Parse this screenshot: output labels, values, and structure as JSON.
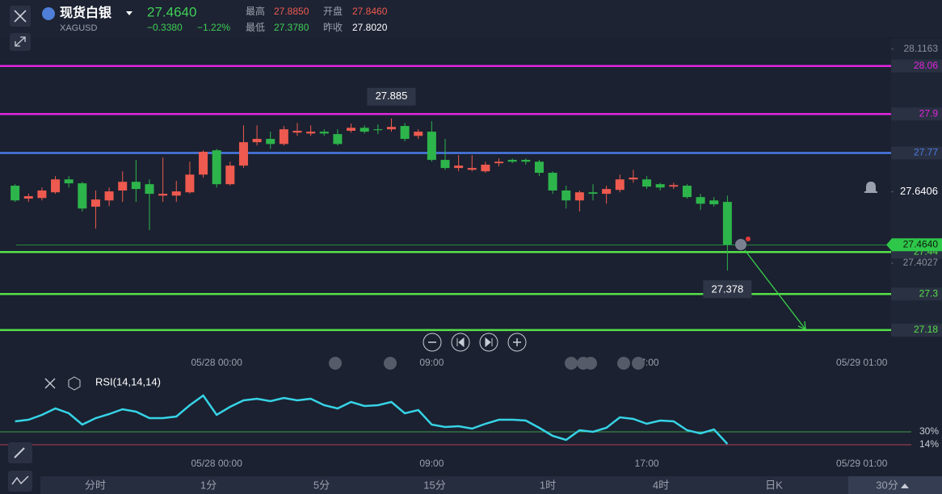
{
  "header": {
    "name": "现货白银",
    "symbol": "XAGUSD",
    "price": "27.4640",
    "change": "−0.3380",
    "change_pct": "−1.22%",
    "high_label": "最高",
    "high": "27.8850",
    "open_label": "开盘",
    "open": "27.8460",
    "low_label": "最低",
    "low": "27.3780",
    "prev_label": "昨收",
    "prev": "27.8020"
  },
  "chart_data": [
    {
      "type": "candlestick",
      "up_color": "#ee5a4f",
      "down_color": "#2db54b",
      "ylim": [
        27.15,
        28.14
      ],
      "yticks": [
        28.1163,
        27.6406,
        27.4027
      ],
      "xlim": [
        -1,
        65
      ],
      "xticks": [
        {
          "value": 15,
          "label": "05/28 00:00"
        },
        {
          "value": 31,
          "label": "09:00"
        },
        {
          "value": 47,
          "label": "17:00"
        },
        {
          "value": 63,
          "label": "05/29 01:00"
        }
      ],
      "last_price": {
        "value": 27.464,
        "label": "27.4640",
        "color": "#2fc74a"
      },
      "hlines": [
        {
          "value": 28.06,
          "color": "#e026e0"
        },
        {
          "value": 27.9,
          "color": "#e026e0"
        },
        {
          "value": 27.77,
          "color": "#4a7be8"
        },
        {
          "value": 27.44,
          "color": "#56e04a"
        },
        {
          "value": 27.3,
          "color": "#56e04a"
        },
        {
          "value": 27.18,
          "color": "#56e04a"
        }
      ],
      "high_label": 27.885,
      "low_label": 27.378,
      "open": [
        27.661,
        27.618,
        27.62,
        27.639,
        27.682,
        27.669,
        27.591,
        27.612,
        27.645,
        27.674,
        27.666,
        27.628,
        27.628,
        27.639,
        27.698,
        27.779,
        27.666,
        27.728,
        27.806,
        27.817,
        27.8,
        27.838,
        27.835,
        27.841,
        27.833,
        27.844,
        27.854,
        27.849,
        27.849,
        27.86,
        27.827,
        27.841,
        27.747,
        27.72,
        27.714,
        27.709,
        27.736,
        27.747,
        27.747,
        27.741,
        27.704,
        27.645,
        27.612,
        27.639,
        27.634,
        27.647,
        27.682,
        27.682,
        27.666,
        27.658,
        27.661,
        27.623,
        27.612,
        27.607
      ],
      "high": [
        27.666,
        27.634,
        27.655,
        27.693,
        27.693,
        27.674,
        27.645,
        27.655,
        27.709,
        27.747,
        27.682,
        27.755,
        27.677,
        27.741,
        27.779,
        27.784,
        27.741,
        27.862,
        27.862,
        27.841,
        27.86,
        27.87,
        27.862,
        27.849,
        27.849,
        27.868,
        27.862,
        27.865,
        27.885,
        27.87,
        27.849,
        27.876,
        27.817,
        27.763,
        27.763,
        27.741,
        27.752,
        27.752,
        27.752,
        27.747,
        27.709,
        27.661,
        27.645,
        27.666,
        27.661,
        27.698,
        27.714,
        27.693,
        27.671,
        27.671,
        27.666,
        27.634,
        27.623,
        27.628
      ],
      "low": [
        27.607,
        27.607,
        27.612,
        27.634,
        27.655,
        27.575,
        27.518,
        27.593,
        27.607,
        27.607,
        27.513,
        27.607,
        27.607,
        27.634,
        27.688,
        27.655,
        27.661,
        27.72,
        27.795,
        27.784,
        27.795,
        27.827,
        27.827,
        27.827,
        27.795,
        27.838,
        27.835,
        27.833,
        27.841,
        27.809,
        27.817,
        27.741,
        27.714,
        27.709,
        27.709,
        27.704,
        27.725,
        27.736,
        27.731,
        27.693,
        27.634,
        27.585,
        27.575,
        27.612,
        27.601,
        27.639,
        27.671,
        27.65,
        27.645,
        27.65,
        27.618,
        27.58,
        27.591,
        27.378
      ],
      "close": [
        27.612,
        27.626,
        27.645,
        27.682,
        27.669,
        27.585,
        27.615,
        27.642,
        27.674,
        27.65,
        27.634,
        27.634,
        27.642,
        27.698,
        27.774,
        27.666,
        27.728,
        27.806,
        27.817,
        27.8,
        27.849,
        27.844,
        27.841,
        27.835,
        27.8,
        27.854,
        27.841,
        27.846,
        27.857,
        27.817,
        27.841,
        27.747,
        27.72,
        27.728,
        27.72,
        27.731,
        27.741,
        27.741,
        27.741,
        27.704,
        27.645,
        27.612,
        27.639,
        27.634,
        27.65,
        27.682,
        27.688,
        27.658,
        27.655,
        27.663,
        27.623,
        27.601,
        27.599,
        27.464
      ]
    },
    {
      "type": "line",
      "title": "RSI(14,14,14)",
      "ylim": [
        0,
        100
      ],
      "xlim": [
        -1,
        65
      ],
      "hlines": [
        {
          "value": 30,
          "label": "30%",
          "color": "#3f9a4c"
        },
        {
          "value": 14,
          "label": "14%",
          "color": "#b0405a"
        }
      ],
      "series": [
        {
          "name": "RSI",
          "color": "#36d3e6",
          "values": [
            43,
            45,
            51,
            59,
            53,
            39,
            47,
            52,
            58,
            55,
            47,
            47,
            49,
            63,
            75,
            51,
            61,
            69,
            71,
            68,
            72,
            69,
            71,
            63,
            59,
            67,
            62,
            63,
            67,
            53,
            57,
            39,
            36,
            37,
            34,
            40,
            45,
            45,
            44,
            35,
            25,
            20,
            32,
            30,
            35,
            48,
            46,
            40,
            44,
            43,
            32,
            28,
            33,
            15
          ]
        }
      ]
    }
  ],
  "tabs": [
    "分时",
    "1分",
    "5分",
    "15分",
    "1时",
    "4时",
    "日K",
    "30分"
  ]
}
